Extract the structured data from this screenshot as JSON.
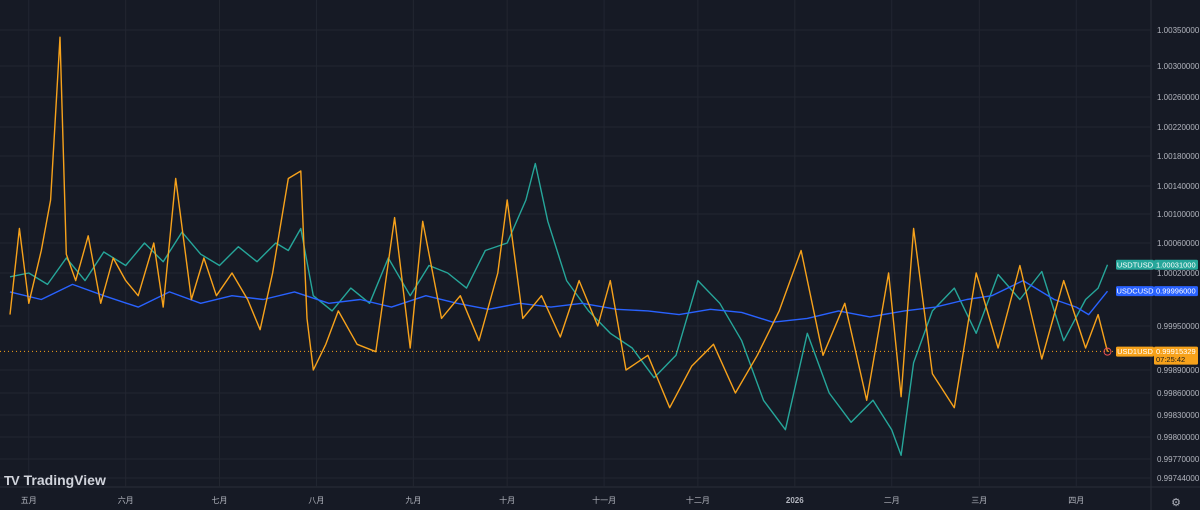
{
  "brand": {
    "name": "TradingView"
  },
  "settings": {
    "icon": "gear-icon",
    "glyph": "⚙"
  },
  "chart_data": {
    "type": "line",
    "y_ticks": [
      {
        "label": "1.00350000",
        "value": 1.0035
      },
      {
        "label": "1.00300000",
        "value": 1.003
      },
      {
        "label": "1.00260000",
        "value": 1.0026
      },
      {
        "label": "1.00220000",
        "value": 1.0022
      },
      {
        "label": "1.00180000",
        "value": 1.0018
      },
      {
        "label": "1.00140000",
        "value": 1.0014
      },
      {
        "label": "1.00100000",
        "value": 1.001
      },
      {
        "label": "1.00060000",
        "value": 1.0006
      },
      {
        "label": "1.00020000",
        "value": 1.0002
      },
      {
        "label": "0.99950000",
        "value": 0.9995
      },
      {
        "label": "0.99890000",
        "value": 0.9989
      },
      {
        "label": "0.99860000",
        "value": 0.9986
      },
      {
        "label": "0.99830000",
        "value": 0.9983
      },
      {
        "label": "0.99800000",
        "value": 0.998
      },
      {
        "label": "0.99770000",
        "value": 0.9977
      },
      {
        "label": "0.99744000",
        "value": 0.99744
      }
    ],
    "x_ticks": [
      {
        "label": "五月",
        "date": "2025-05-01"
      },
      {
        "label": "六月",
        "date": "2025-06-01"
      },
      {
        "label": "七月",
        "date": "2025-07-01"
      },
      {
        "label": "八月",
        "date": "2025-08-01"
      },
      {
        "label": "九月",
        "date": "2025-09-01"
      },
      {
        "label": "十月",
        "date": "2025-10-01"
      },
      {
        "label": "十一月",
        "date": "2025-11-01"
      },
      {
        "label": "十二月",
        "date": "2025-12-01"
      },
      {
        "label": "2026",
        "date": "2026-01-01",
        "bold": true
      },
      {
        "label": "二月",
        "date": "2026-02-01"
      },
      {
        "label": "三月",
        "date": "2026-03-01"
      },
      {
        "label": "四月",
        "date": "2026-04-01"
      }
    ],
    "x_range": [
      "2025-04-25",
      "2026-04-15"
    ],
    "price_line": 0.99915329,
    "series": [
      {
        "name": "USDTUSD",
        "color": "#26a69a",
        "value_label": "1.00031000",
        "x": [
          "2025-04-25",
          "2025-05-01",
          "2025-05-07",
          "2025-05-13",
          "2025-05-19",
          "2025-05-25",
          "2025-06-01",
          "2025-06-07",
          "2025-06-13",
          "2025-06-19",
          "2025-06-25",
          "2025-07-01",
          "2025-07-07",
          "2025-07-13",
          "2025-07-19",
          "2025-07-23",
          "2025-07-27",
          "2025-07-31",
          "2025-08-06",
          "2025-08-12",
          "2025-08-18",
          "2025-08-24",
          "2025-08-31",
          "2025-09-06",
          "2025-09-12",
          "2025-09-18",
          "2025-09-24",
          "2025-10-01",
          "2025-10-07",
          "2025-10-10",
          "2025-10-14",
          "2025-10-20",
          "2025-10-27",
          "2025-11-03",
          "2025-11-10",
          "2025-11-17",
          "2025-11-24",
          "2025-12-01",
          "2025-12-08",
          "2025-12-15",
          "2025-12-22",
          "2025-12-29",
          "2026-01-05",
          "2026-01-12",
          "2026-01-19",
          "2026-01-26",
          "2026-02-01",
          "2026-02-04",
          "2026-02-08",
          "2026-02-14",
          "2026-02-21",
          "2026-02-28",
          "2026-03-07",
          "2026-03-14",
          "2026-03-21",
          "2026-03-28",
          "2026-04-04",
          "2026-04-08",
          "2026-04-11"
        ],
        "y": [
          1.00015,
          1.0002,
          1.00005,
          1.0004,
          1.0001,
          1.00048,
          1.0003,
          1.0006,
          1.00035,
          1.00075,
          1.00045,
          1.0003,
          1.00055,
          1.00035,
          1.0006,
          1.0005,
          1.0008,
          0.9999,
          0.9997,
          1.0,
          0.9998,
          1.0004,
          0.9999,
          1.0003,
          1.0002,
          1.0,
          1.0005,
          1.0006,
          1.0012,
          1.0017,
          1.0009,
          1.0001,
          0.9997,
          0.9994,
          0.9992,
          0.9988,
          0.9991,
          1.0001,
          0.9998,
          0.9993,
          0.9985,
          0.9981,
          0.9994,
          0.9986,
          0.9982,
          0.9985,
          0.9981,
          0.99775,
          0.999,
          0.9997,
          1.0,
          0.9994,
          1.00018,
          0.99985,
          1.00022,
          0.9993,
          0.99985,
          1.0,
          1.00031
        ]
      },
      {
        "name": "USDCUSD",
        "color": "#2962ff",
        "value_label": "0.99996000",
        "x": [
          "2025-04-25",
          "2025-05-05",
          "2025-05-15",
          "2025-05-25",
          "2025-06-05",
          "2025-06-15",
          "2025-06-25",
          "2025-07-05",
          "2025-07-15",
          "2025-07-25",
          "2025-08-05",
          "2025-08-15",
          "2025-08-25",
          "2025-09-05",
          "2025-09-15",
          "2025-09-25",
          "2025-10-05",
          "2025-10-15",
          "2025-10-25",
          "2025-11-05",
          "2025-11-15",
          "2025-11-25",
          "2025-12-05",
          "2025-12-15",
          "2025-12-25",
          "2026-01-05",
          "2026-01-15",
          "2026-01-25",
          "2026-02-05",
          "2026-02-15",
          "2026-02-25",
          "2026-03-05",
          "2026-03-15",
          "2026-03-25",
          "2026-04-01",
          "2026-04-05",
          "2026-04-11"
        ],
        "y": [
          0.99995,
          0.99985,
          1.00005,
          0.9999,
          0.99975,
          0.99995,
          0.9998,
          0.9999,
          0.99985,
          0.99995,
          0.9998,
          0.99985,
          0.99975,
          0.9999,
          0.9998,
          0.99972,
          0.9998,
          0.99975,
          0.9998,
          0.99972,
          0.9997,
          0.99965,
          0.99972,
          0.99968,
          0.99955,
          0.9996,
          0.9997,
          0.99962,
          0.9997,
          0.99975,
          0.99985,
          0.9999,
          1.0001,
          0.99985,
          0.99975,
          0.99965,
          0.99996
        ]
      },
      {
        "name": "USD1USD",
        "color": "#f7a21b",
        "value_label": "0.99915329",
        "time_label": "07:25:42",
        "x": [
          "2025-04-25",
          "2025-04-28",
          "2025-05-01",
          "2025-05-05",
          "2025-05-08",
          "2025-05-11",
          "2025-05-13",
          "2025-05-16",
          "2025-05-20",
          "2025-05-24",
          "2025-05-28",
          "2025-06-01",
          "2025-06-05",
          "2025-06-10",
          "2025-06-13",
          "2025-06-17",
          "2025-06-22",
          "2025-06-26",
          "2025-06-30",
          "2025-07-05",
          "2025-07-10",
          "2025-07-14",
          "2025-07-18",
          "2025-07-23",
          "2025-07-27",
          "2025-07-29",
          "2025-07-31",
          "2025-08-04",
          "2025-08-08",
          "2025-08-14",
          "2025-08-20",
          "2025-08-26",
          "2025-08-31",
          "2025-09-04",
          "2025-09-10",
          "2025-09-16",
          "2025-09-22",
          "2025-09-28",
          "2025-10-01",
          "2025-10-06",
          "2025-10-12",
          "2025-10-18",
          "2025-10-24",
          "2025-10-30",
          "2025-11-03",
          "2025-11-08",
          "2025-11-15",
          "2025-11-22",
          "2025-11-29",
          "2025-12-06",
          "2025-12-13",
          "2025-12-20",
          "2025-12-27",
          "2026-01-03",
          "2026-01-10",
          "2026-01-17",
          "2026-01-24",
          "2026-01-31",
          "2026-02-04",
          "2026-02-08",
          "2026-02-14",
          "2026-02-21",
          "2026-02-28",
          "2026-03-07",
          "2026-03-14",
          "2026-03-21",
          "2026-03-28",
          "2026-04-04",
          "2026-04-08",
          "2026-04-11"
        ],
        "y": [
          0.99965,
          1.0008,
          0.9998,
          1.0005,
          1.0012,
          1.0034,
          1.00045,
          1.0001,
          1.0007,
          0.9998,
          1.0004,
          1.0001,
          0.9999,
          1.0006,
          0.99975,
          1.0015,
          0.99985,
          1.0004,
          0.9999,
          1.0002,
          0.99985,
          0.99945,
          1.0002,
          1.0015,
          1.0016,
          0.9996,
          0.9989,
          0.99925,
          0.9997,
          0.99925,
          0.99915,
          1.00095,
          0.9992,
          1.0009,
          0.9996,
          0.9999,
          0.9993,
          1.0002,
          1.0012,
          0.9996,
          0.9999,
          0.99935,
          1.0001,
          0.9995,
          1.0001,
          0.9989,
          0.9991,
          0.9984,
          0.99895,
          0.99925,
          0.9986,
          0.9991,
          0.9997,
          1.0005,
          0.9991,
          0.9998,
          0.9985,
          1.0002,
          0.99855,
          1.0008,
          0.99885,
          0.9984,
          1.0002,
          0.9992,
          1.0003,
          0.99905,
          1.0001,
          0.9992,
          0.99965,
          0.99915
        ]
      }
    ]
  }
}
